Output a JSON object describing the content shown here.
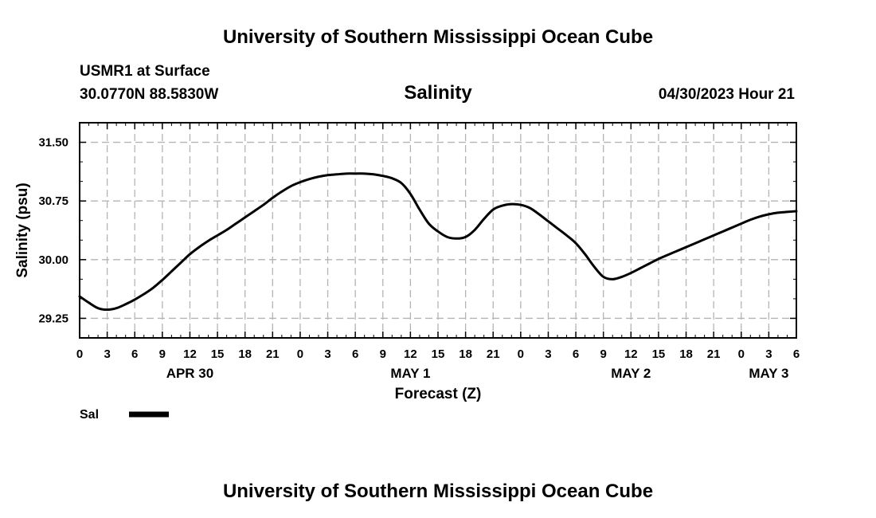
{
  "header": {
    "title": "University of Southern Mississippi Ocean Cube",
    "station": "USMR1 at Surface",
    "location": "30.0770N  88.5830W",
    "datetime": "04/30/2023 Hour 21"
  },
  "footer": {
    "title": "University of Southern Mississippi Ocean Cube"
  },
  "chart_data": {
    "type": "line",
    "title": "Salinity",
    "xlabel": "Forecast (Z)",
    "ylabel": "Salinity (psu)",
    "xlim": [
      0,
      78
    ],
    "ylim": [
      29.0,
      31.75
    ],
    "grid": true,
    "x_tick_labels": [
      "0",
      "3",
      "6",
      "9",
      "12",
      "15",
      "18",
      "21",
      "0",
      "3",
      "6",
      "9",
      "12",
      "15",
      "18",
      "21",
      "0",
      "3",
      "6",
      "9",
      "12",
      "15",
      "18",
      "21",
      "0",
      "3",
      "6"
    ],
    "y_ticks": [
      29.25,
      30.0,
      30.75,
      31.5
    ],
    "y_tick_labels": [
      "29.25",
      "30.00",
      "30.75",
      "31.50"
    ],
    "date_labels": [
      {
        "label": "APR 30",
        "x": 12
      },
      {
        "label": "MAY 1",
        "x": 36
      },
      {
        "label": "MAY 2",
        "x": 60
      },
      {
        "label": "MAY 3",
        "x": 75
      }
    ],
    "series": [
      {
        "name": "Sal",
        "color": "#000000",
        "x": [
          0,
          1,
          2,
          3,
          4,
          5,
          6,
          7,
          8,
          9,
          10,
          11,
          12,
          13,
          14,
          15,
          16,
          17,
          18,
          19,
          20,
          21,
          22,
          23,
          24,
          25,
          26,
          27,
          28,
          29,
          30,
          31,
          32,
          33,
          34,
          35,
          36,
          37,
          38,
          39,
          40,
          41,
          42,
          43,
          44,
          45,
          46,
          47,
          48,
          49,
          50,
          51,
          52,
          53,
          54,
          55,
          56,
          57,
          58,
          59,
          60,
          61,
          62,
          63,
          64,
          65,
          66,
          67,
          68,
          69,
          70,
          71,
          72,
          73,
          74,
          75,
          76,
          77,
          78
        ],
        "values": [
          29.53,
          29.45,
          29.38,
          29.36,
          29.38,
          29.43,
          29.49,
          29.56,
          29.64,
          29.74,
          29.85,
          29.96,
          30.07,
          30.16,
          30.24,
          30.31,
          30.38,
          30.46,
          30.54,
          30.62,
          30.7,
          30.79,
          30.87,
          30.94,
          30.99,
          31.03,
          31.06,
          31.08,
          31.09,
          31.1,
          31.1,
          31.1,
          31.09,
          31.07,
          31.04,
          30.98,
          30.84,
          30.64,
          30.46,
          30.36,
          30.29,
          30.27,
          30.29,
          30.38,
          30.52,
          30.64,
          30.69,
          30.71,
          30.7,
          30.66,
          30.58,
          30.49,
          30.4,
          30.31,
          30.21,
          30.07,
          29.91,
          29.78,
          29.75,
          29.78,
          29.83,
          29.89,
          29.95,
          30.01,
          30.06,
          30.11,
          30.16,
          30.21,
          30.26,
          30.31,
          30.36,
          30.41,
          30.46,
          30.51,
          30.55,
          30.58,
          30.6,
          30.61,
          30.62
        ]
      }
    ],
    "legend": {
      "label": "Sal",
      "placement": "bottom-left"
    }
  }
}
